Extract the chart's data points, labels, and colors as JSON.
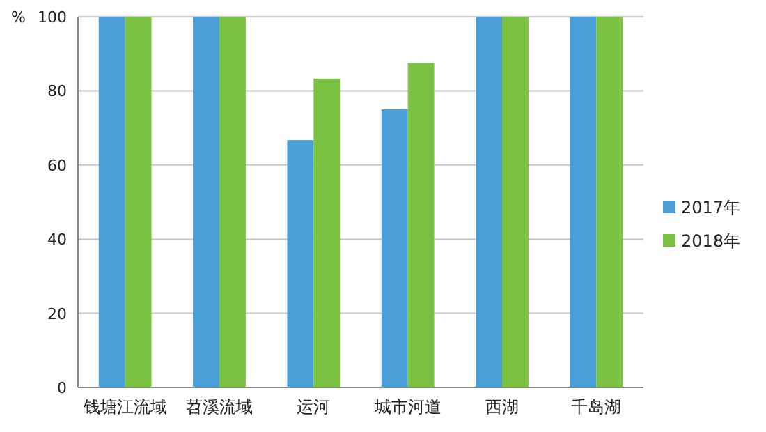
{
  "chart_data": {
    "type": "bar",
    "ylabel": "%",
    "categories": [
      "钱塘江流域",
      "苕溪流域",
      "运河",
      "城市河道",
      "西湖",
      "千岛湖"
    ],
    "series": [
      {
        "name": "2017年",
        "color": "#4a9fd8",
        "values": [
          100,
          100,
          66.7,
          75,
          100,
          100
        ]
      },
      {
        "name": "2018年",
        "color": "#7cc242",
        "values": [
          100,
          100,
          83.3,
          87.5,
          100,
          100
        ]
      }
    ],
    "ylim": [
      0,
      100
    ],
    "yticks": [
      0,
      20,
      40,
      60,
      80,
      100
    ],
    "grid": "y",
    "legend": "right"
  }
}
